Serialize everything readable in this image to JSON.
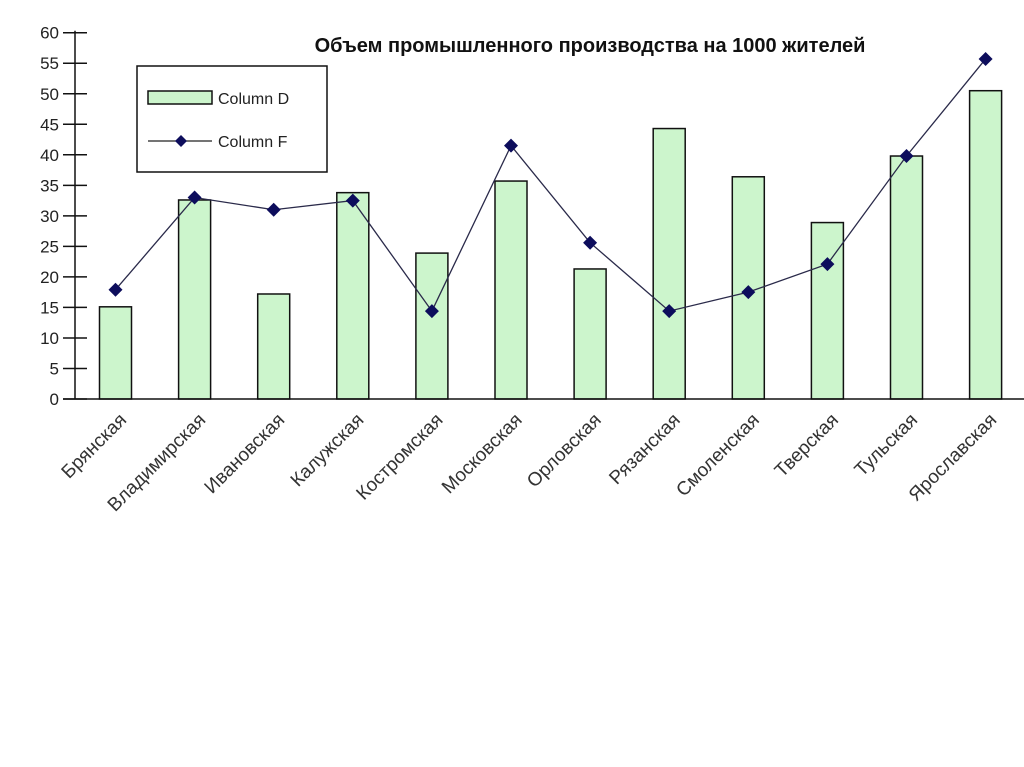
{
  "chart_data": {
    "type": "bar+line",
    "title": "Объем промышленного производства на 1000 жителей",
    "xlabel": "",
    "ylabel": "",
    "ylim": [
      0,
      60
    ],
    "yticks": [
      0,
      5,
      10,
      15,
      20,
      25,
      30,
      35,
      40,
      45,
      50,
      55,
      60
    ],
    "grid": false,
    "legend_position": "top-left",
    "categories": [
      "Брянская",
      "Владимирская",
      "Ивановская",
      "Калужская",
      "Костромская",
      "Московская",
      "Орловская",
      "Рязанская",
      "Смоленская",
      "Тверская",
      "Тульская",
      "Ярославская"
    ],
    "series": [
      {
        "name": "Column D",
        "type": "bar",
        "color": "#ccf5cc",
        "values": [
          15.1,
          32.6,
          17.2,
          33.8,
          23.9,
          35.7,
          21.3,
          44.3,
          36.4,
          28.9,
          39.8,
          50.5
        ]
      },
      {
        "name": "Column F",
        "type": "line",
        "color": "#0d0d5c",
        "values": [
          17.9,
          33.0,
          31.0,
          32.5,
          14.4,
          41.5,
          25.6,
          14.4,
          17.5,
          22.1,
          39.8,
          55.7
        ]
      }
    ]
  }
}
